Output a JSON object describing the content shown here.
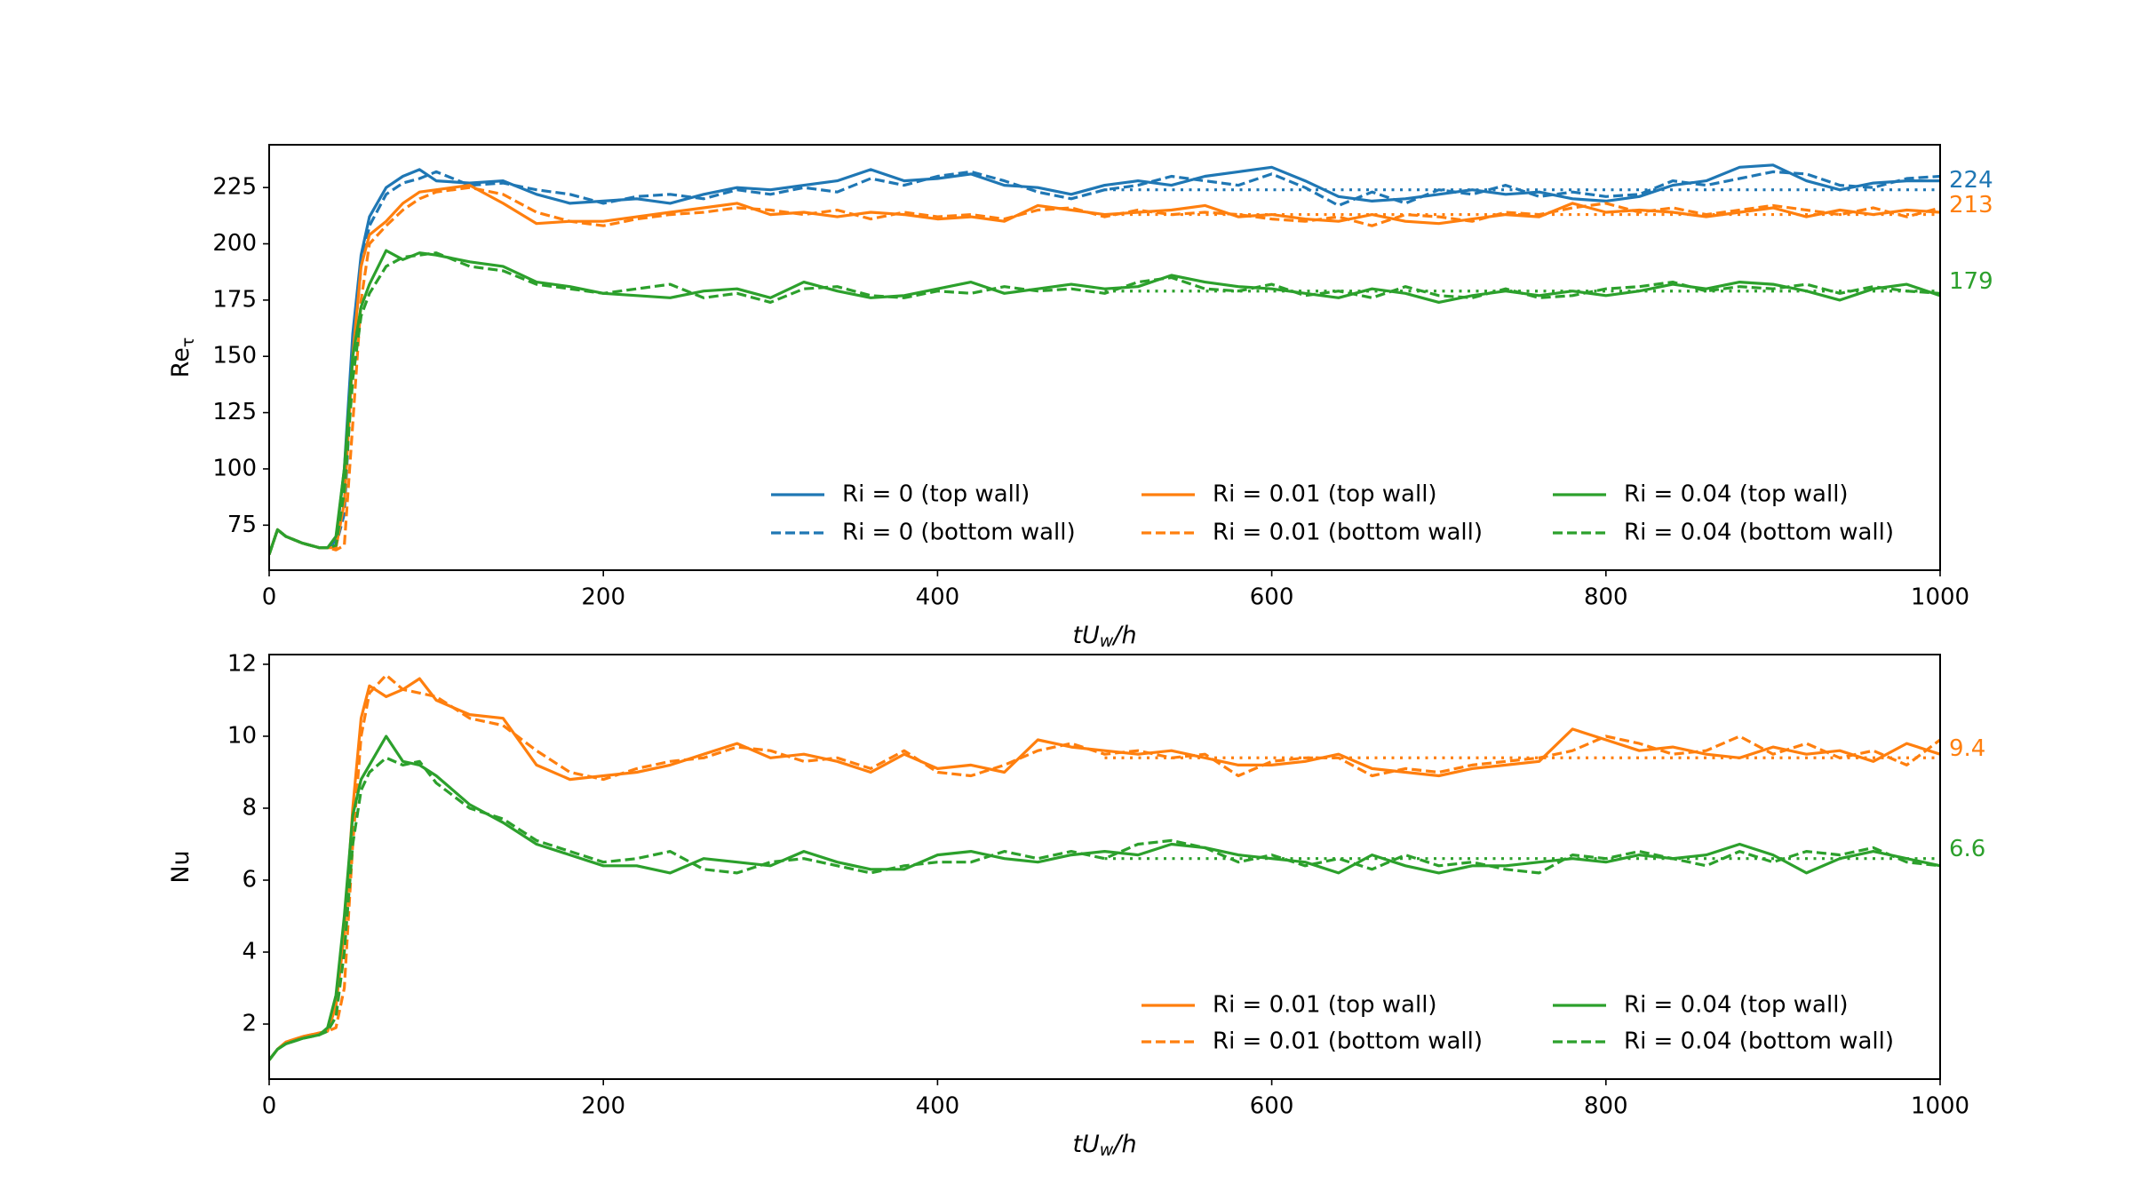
{
  "colors": {
    "Ri0": "#1f77b4",
    "Ri001": "#ff7f0e",
    "Ri004": "#2ca02c"
  },
  "x": [
    0,
    5,
    10,
    20,
    30,
    35,
    40,
    45,
    50,
    55,
    60,
    70,
    80,
    90,
    100,
    120,
    140,
    160,
    180,
    200,
    220,
    240,
    260,
    280,
    300,
    320,
    340,
    360,
    380,
    400,
    420,
    440,
    460,
    480,
    500,
    520,
    540,
    560,
    580,
    600,
    620,
    640,
    660,
    680,
    700,
    720,
    740,
    760,
    780,
    800,
    820,
    840,
    860,
    880,
    900,
    920,
    940,
    960,
    980,
    1000
  ],
  "chart_data": [
    {
      "type": "line",
      "xlabel": {
        "italic_prefix": "tU",
        "sub": "w",
        "suffix": "/h"
      },
      "ylabel": {
        "text": "Re",
        "sub": "τ"
      },
      "xlim": [
        0,
        1000
      ],
      "ylim": [
        55,
        244
      ],
      "xticks": [
        "0",
        "200",
        "400",
        "600",
        "800",
        "1000"
      ],
      "xtick_values": [
        0,
        200,
        400,
        600,
        800,
        1000
      ],
      "yticks": [
        "75",
        "100",
        "125",
        "150",
        "175",
        "200",
        "225"
      ],
      "ytick_values": [
        75,
        100,
        125,
        150,
        175,
        200,
        225
      ],
      "legend_placement": "lower-right",
      "series": [
        {
          "name": "Ri = 0 (top wall)",
          "color": "#1f77b4",
          "style": "solid",
          "values": [
            62,
            73,
            70,
            67,
            65,
            65,
            68,
            100,
            160,
            195,
            212,
            225,
            230,
            233,
            228,
            227,
            228,
            222,
            218,
            219,
            220,
            218,
            222,
            225,
            224,
            226,
            228,
            233,
            228,
            229,
            231,
            226,
            225,
            222,
            226,
            228,
            226,
            230,
            232,
            234,
            228,
            221,
            219,
            220,
            222,
            224,
            222,
            223,
            220,
            219,
            221,
            226,
            228,
            234,
            235,
            228,
            224,
            227,
            228,
            228
          ]
        },
        {
          "name": "Ri = 0 (bottom wall)",
          "color": "#1f77b4",
          "style": "dashed",
          "values": [
            62,
            73,
            70,
            67,
            65,
            65,
            66,
            80,
            150,
            190,
            208,
            222,
            227,
            229,
            232,
            226,
            227,
            224,
            222,
            218,
            221,
            222,
            220,
            224,
            222,
            225,
            223,
            229,
            226,
            230,
            232,
            228,
            223,
            220,
            224,
            226,
            230,
            228,
            226,
            231,
            225,
            217,
            223,
            218,
            224,
            222,
            226,
            221,
            223,
            221,
            222,
            228,
            226,
            229,
            232,
            231,
            226,
            225,
            229,
            230
          ]
        },
        {
          "name": "Ri = 0.01 (top wall)",
          "color": "#ff7f0e",
          "style": "solid",
          "values": [
            62,
            73,
            70,
            67,
            65,
            65,
            65,
            85,
            150,
            190,
            204,
            210,
            218,
            223,
            224,
            226,
            218,
            209,
            210,
            210,
            212,
            214,
            216,
            218,
            213,
            214,
            212,
            214,
            213,
            211,
            212,
            210,
            217,
            215,
            213,
            214,
            215,
            217,
            212,
            213,
            211,
            210,
            213,
            210,
            209,
            211,
            213,
            212,
            218,
            214,
            215,
            214,
            212,
            214,
            216,
            212,
            215,
            213,
            215,
            214
          ]
        },
        {
          "name": "Ri = 0.01 (bottom wall)",
          "color": "#ff7f0e",
          "style": "dashed",
          "values": [
            62,
            73,
            70,
            67,
            65,
            65,
            64,
            66,
            120,
            175,
            200,
            208,
            215,
            220,
            223,
            225,
            222,
            214,
            210,
            208,
            211,
            213,
            214,
            216,
            215,
            213,
            215,
            211,
            214,
            212,
            213,
            211,
            215,
            216,
            212,
            215,
            213,
            214,
            213,
            211,
            210,
            212,
            208,
            213,
            212,
            210,
            214,
            213,
            216,
            218,
            214,
            216,
            213,
            215,
            217,
            215,
            213,
            216,
            212,
            216
          ]
        },
        {
          "name": "Ri = 0.04 (top wall)",
          "color": "#2ca02c",
          "style": "solid",
          "values": [
            62,
            73,
            70,
            67,
            65,
            65,
            70,
            100,
            150,
            172,
            182,
            197,
            193,
            196,
            195,
            192,
            190,
            183,
            181,
            178,
            177,
            176,
            179,
            180,
            176,
            183,
            179,
            176,
            177,
            180,
            183,
            178,
            180,
            182,
            180,
            181,
            186,
            183,
            181,
            180,
            178,
            176,
            180,
            178,
            174,
            177,
            179,
            177,
            179,
            177,
            179,
            182,
            180,
            183,
            182,
            179,
            175,
            180,
            182,
            177
          ]
        },
        {
          "name": "Ri = 0.04 (bottom wall)",
          "color": "#2ca02c",
          "style": "dashed",
          "values": [
            62,
            73,
            70,
            67,
            65,
            65,
            66,
            90,
            140,
            168,
            178,
            190,
            194,
            195,
            196,
            190,
            188,
            182,
            180,
            178,
            180,
            182,
            176,
            178,
            174,
            180,
            181,
            177,
            176,
            179,
            178,
            181,
            179,
            180,
            178,
            183,
            185,
            180,
            179,
            182,
            177,
            179,
            176,
            181,
            177,
            176,
            180,
            176,
            177,
            180,
            181,
            183,
            179,
            181,
            180,
            182,
            178,
            181,
            179,
            178
          ]
        }
      ],
      "means": [
        {
          "value": 224,
          "label": "224",
          "color": "#1f77b4",
          "from": 500,
          "to": 1000
        },
        {
          "value": 213,
          "label": "213",
          "color": "#ff7f0e",
          "from": 500,
          "to": 1000
        },
        {
          "value": 179,
          "label": "179",
          "color": "#2ca02c",
          "from": 500,
          "to": 1000
        }
      ]
    },
    {
      "type": "line",
      "xlabel": {
        "italic_prefix": "tU",
        "sub": "w",
        "suffix": "/h"
      },
      "ylabel": {
        "text": "Nu",
        "sub": ""
      },
      "xlim": [
        0,
        1000
      ],
      "ylim": [
        0.47,
        12.27
      ],
      "xticks": [
        "0",
        "200",
        "400",
        "600",
        "800",
        "1000"
      ],
      "xtick_values": [
        0,
        200,
        400,
        600,
        800,
        1000
      ],
      "yticks": [
        "2",
        "4",
        "6",
        "8",
        "10",
        "12"
      ],
      "ytick_values": [
        2,
        4,
        6,
        8,
        10,
        12
      ],
      "legend_placement": "lower-right",
      "series": [
        {
          "name": "Ri = 0.01 (top wall)",
          "color": "#ff7f0e",
          "style": "solid",
          "values": [
            1.0,
            1.3,
            1.5,
            1.65,
            1.75,
            1.8,
            2.5,
            4.5,
            8,
            10.5,
            11.4,
            11.1,
            11.3,
            11.6,
            11.0,
            10.6,
            10.5,
            9.2,
            8.8,
            8.9,
            9.0,
            9.2,
            9.5,
            9.8,
            9.4,
            9.5,
            9.3,
            9.0,
            9.5,
            9.1,
            9.2,
            9.0,
            9.9,
            9.7,
            9.6,
            9.5,
            9.6,
            9.4,
            9.2,
            9.2,
            9.3,
            9.5,
            9.1,
            9.0,
            8.9,
            9.1,
            9.2,
            9.3,
            10.2,
            9.9,
            9.6,
            9.7,
            9.5,
            9.4,
            9.7,
            9.5,
            9.6,
            9.3,
            9.8,
            9.5
          ]
        },
        {
          "name": "Ri = 0.01 (bottom wall)",
          "color": "#ff7f0e",
          "style": "dashed",
          "values": [
            1.0,
            1.3,
            1.5,
            1.65,
            1.75,
            1.8,
            1.9,
            3,
            7,
            10,
            11.2,
            11.7,
            11.3,
            11.2,
            11.1,
            10.5,
            10.3,
            9.6,
            9.0,
            8.8,
            9.1,
            9.3,
            9.4,
            9.7,
            9.6,
            9.3,
            9.4,
            9.1,
            9.6,
            9.0,
            8.9,
            9.2,
            9.6,
            9.8,
            9.5,
            9.6,
            9.4,
            9.5,
            8.9,
            9.3,
            9.4,
            9.4,
            8.9,
            9.1,
            9.0,
            9.2,
            9.3,
            9.4,
            9.6,
            10.0,
            9.8,
            9.5,
            9.6,
            10.0,
            9.5,
            9.8,
            9.4,
            9.6,
            9.2,
            9.9
          ]
        },
        {
          "name": "Ri = 0.04 (top wall)",
          "color": "#2ca02c",
          "style": "solid",
          "values": [
            1.0,
            1.3,
            1.45,
            1.6,
            1.7,
            1.9,
            2.8,
            5,
            7.8,
            8.8,
            9.2,
            10.0,
            9.3,
            9.2,
            8.9,
            8.1,
            7.6,
            7.0,
            6.7,
            6.4,
            6.4,
            6.2,
            6.6,
            6.5,
            6.4,
            6.8,
            6.5,
            6.3,
            6.3,
            6.7,
            6.8,
            6.6,
            6.5,
            6.7,
            6.8,
            6.7,
            7.0,
            6.9,
            6.7,
            6.6,
            6.5,
            6.2,
            6.7,
            6.4,
            6.2,
            6.4,
            6.4,
            6.5,
            6.6,
            6.5,
            6.7,
            6.6,
            6.7,
            7.0,
            6.7,
            6.2,
            6.6,
            6.8,
            6.6,
            6.4
          ]
        },
        {
          "name": "Ri = 0.04 (bottom wall)",
          "color": "#2ca02c",
          "style": "dashed",
          "values": [
            1.0,
            1.3,
            1.45,
            1.6,
            1.7,
            1.8,
            2.2,
            4,
            7,
            8.5,
            9.0,
            9.4,
            9.2,
            9.3,
            8.7,
            8.0,
            7.7,
            7.1,
            6.8,
            6.5,
            6.6,
            6.8,
            6.3,
            6.2,
            6.5,
            6.6,
            6.4,
            6.2,
            6.4,
            6.5,
            6.5,
            6.8,
            6.6,
            6.8,
            6.6,
            7.0,
            7.1,
            6.9,
            6.5,
            6.7,
            6.4,
            6.6,
            6.3,
            6.7,
            6.4,
            6.5,
            6.3,
            6.2,
            6.7,
            6.6,
            6.8,
            6.6,
            6.4,
            6.8,
            6.5,
            6.8,
            6.7,
            6.9,
            6.5,
            6.4
          ]
        }
      ],
      "means": [
        {
          "value": 9.4,
          "label": "9.4",
          "color": "#ff7f0e",
          "from": 500,
          "to": 1000
        },
        {
          "value": 6.6,
          "label": "6.6",
          "color": "#2ca02c",
          "from": 500,
          "to": 1000
        }
      ]
    }
  ]
}
